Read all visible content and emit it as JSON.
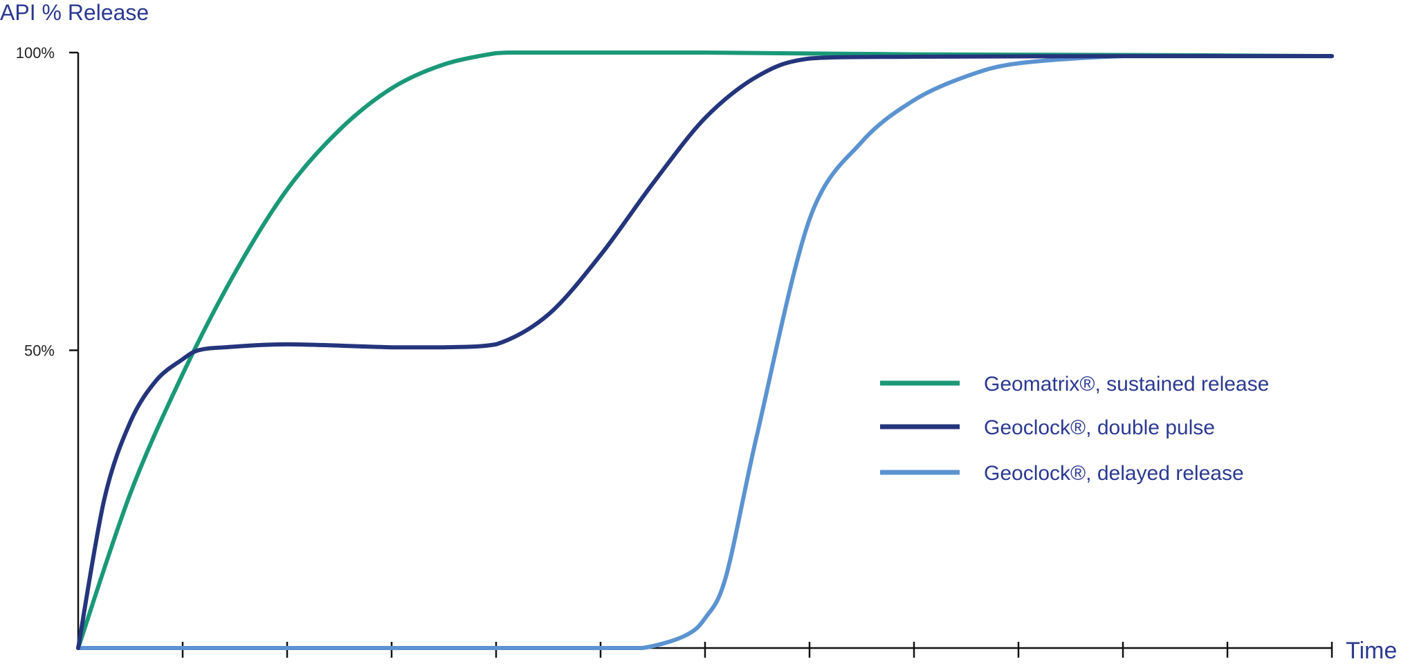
{
  "chart_data": {
    "type": "line",
    "title": "",
    "ylabel": "API % Release",
    "xlabel": "Time",
    "ylim": [
      0,
      100
    ],
    "xlim": [
      0,
      12
    ],
    "y_ticks": [
      {
        "value": 100,
        "label": "100%"
      },
      {
        "value": 50,
        "label": "50%"
      }
    ],
    "x_tick_values": [
      1,
      2,
      3,
      4,
      5,
      6,
      7,
      8,
      9,
      10,
      11,
      12
    ],
    "grid": false,
    "legend_position": "right",
    "series": [
      {
        "name": "Geomatrix®, sustained release",
        "color": "#1a9878",
        "x": [
          0,
          0.5,
          1,
          1.5,
          2,
          2.5,
          3,
          3.5,
          4,
          4.2,
          5,
          6,
          8,
          10,
          12
        ],
        "y": [
          0,
          26,
          46,
          63,
          77,
          87,
          94,
          98,
          99.9,
          100,
          100,
          100,
          99.7,
          99.6,
          99.4
        ]
      },
      {
        "name": "Geoclock®, double pulse",
        "color": "#24357c",
        "x": [
          0,
          0.25,
          0.5,
          0.75,
          1,
          1.15,
          1.4,
          2,
          3,
          3.5,
          4,
          4.5,
          5,
          5.5,
          6,
          6.5,
          7,
          8,
          10,
          12
        ],
        "y": [
          0,
          25,
          38,
          45,
          48.5,
          50,
          50.5,
          51,
          50.5,
          50.5,
          51,
          56,
          66,
          78,
          89,
          96,
          99,
          99.3,
          99.4,
          99.4
        ]
      },
      {
        "name": "Geoclock®, delayed release",
        "color": "#5b93d0",
        "x": [
          0,
          1,
          2,
          3,
          4,
          5,
          5.4,
          5.8,
          6,
          6.2,
          6.5,
          7,
          7.5,
          8,
          8.5,
          9,
          10,
          11,
          12
        ],
        "y": [
          0,
          0,
          0,
          0,
          0,
          0,
          0,
          2,
          5,
          12,
          36,
          72,
          85,
          92,
          96,
          98.2,
          99.4,
          99.4,
          99.4
        ]
      }
    ]
  }
}
